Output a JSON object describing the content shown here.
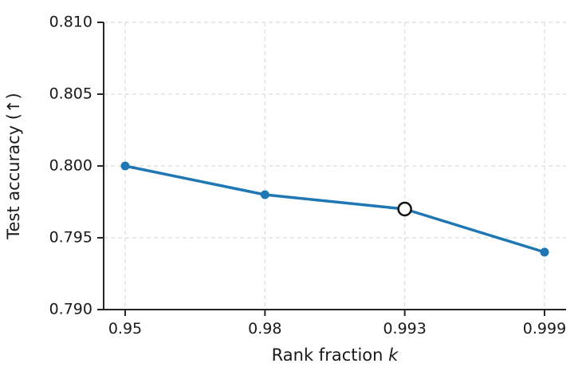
{
  "chart_data": {
    "type": "line",
    "title": "",
    "xlabel": "Rank fraction k",
    "xlabel_parts": {
      "regular": "Rank fraction ",
      "italic": "k"
    },
    "ylabel": "Test accuracy (↑)",
    "categories": [
      "0.95",
      "0.98",
      "0.993",
      "0.999"
    ],
    "x_values": [
      0.95,
      0.98,
      0.993,
      0.999
    ],
    "x_spacing": "equal",
    "series": [
      {
        "name": "test-accuracy",
        "values": [
          0.8,
          0.798,
          0.797,
          0.794
        ]
      }
    ],
    "highlight": {
      "index": 2,
      "category": "0.993",
      "value": 0.797,
      "marker": "open-circle"
    },
    "ylim": [
      0.79,
      0.81
    ],
    "yticks": [
      0.79,
      0.795,
      0.8,
      0.805,
      0.81
    ],
    "ytick_labels": [
      "0.790",
      "0.795",
      "0.800",
      "0.805",
      "0.810"
    ],
    "grid": true,
    "grid_style": "dashed",
    "legend": false,
    "spines": {
      "left": true,
      "bottom": true,
      "top": false,
      "right": false
    }
  },
  "colors": {
    "line": "#1f77b4",
    "marker": "#1f77b4",
    "highlight_fill": "#ffffff",
    "highlight_stroke": "#111111",
    "grid": "#dcdcdc",
    "axis": "#262626",
    "text": "#1a1a1a",
    "background": "#ffffff"
  }
}
